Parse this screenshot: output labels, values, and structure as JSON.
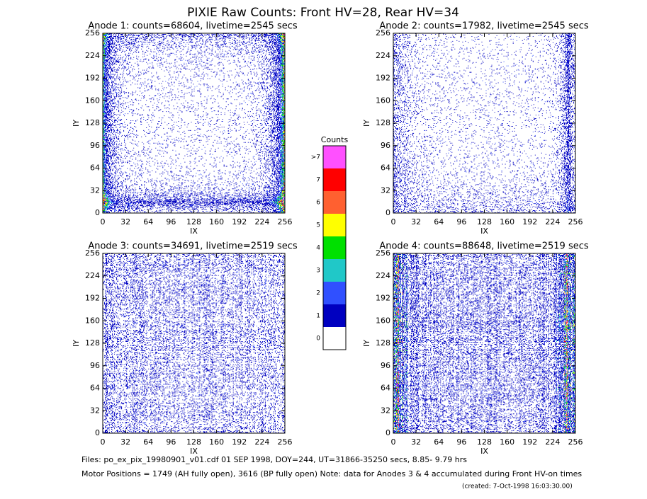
{
  "title": "PIXIE Raw Counts:  Front HV=28, Rear HV=34",
  "chart_data": [
    {
      "type": "heatmap",
      "title": "Anode 1: counts=68604, livetime=2545 secs",
      "xlabel": "IX",
      "ylabel": "IY",
      "xlim": [
        0,
        256
      ],
      "ylim": [
        0,
        256
      ],
      "xticks": [
        0,
        32,
        64,
        96,
        128,
        160,
        192,
        224,
        256
      ],
      "yticks": [
        0,
        32,
        64,
        96,
        128,
        160,
        192,
        224,
        256
      ]
    },
    {
      "type": "heatmap",
      "title": "Anode 2: counts=17982, livetime=2545 secs",
      "xlabel": "IX",
      "ylabel": "IY",
      "xlim": [
        0,
        256
      ],
      "ylim": [
        0,
        256
      ],
      "xticks": [
        0,
        32,
        64,
        96,
        128,
        160,
        192,
        224,
        256
      ],
      "yticks": [
        0,
        32,
        64,
        96,
        128,
        160,
        192,
        224,
        256
      ]
    },
    {
      "type": "heatmap",
      "title": "Anode 3: counts=34691, livetime=2519 secs",
      "xlabel": "IX",
      "ylabel": "IY",
      "xlim": [
        0,
        256
      ],
      "ylim": [
        0,
        256
      ],
      "xticks": [
        0,
        32,
        64,
        96,
        128,
        160,
        192,
        224,
        256
      ],
      "yticks": [
        0,
        32,
        64,
        96,
        128,
        160,
        192,
        224,
        256
      ]
    },
    {
      "type": "heatmap",
      "title": "Anode 4: counts=88648, livetime=2519 secs",
      "xlabel": "IX",
      "ylabel": "IY",
      "xlim": [
        0,
        256
      ],
      "ylim": [
        0,
        256
      ],
      "xticks": [
        0,
        32,
        64,
        96,
        128,
        160,
        192,
        224,
        256
      ],
      "yticks": [
        0,
        32,
        64,
        96,
        128,
        160,
        192,
        224,
        256
      ]
    }
  ],
  "colorbar": {
    "title": "Counts",
    "levels": [
      {
        "label": ">7",
        "color": "#ff50ff"
      },
      {
        "label": 7,
        "color": "#ff0000"
      },
      {
        "label": 6,
        "color": "#ff6030"
      },
      {
        "label": 5,
        "color": "#ffff00"
      },
      {
        "label": 4,
        "color": "#00e000"
      },
      {
        "label": 3,
        "color": "#20c8c8"
      },
      {
        "label": 2,
        "color": "#3050ff"
      },
      {
        "label": 1,
        "color": "#0000c0"
      },
      {
        "label": 0,
        "color": "#ffffff"
      }
    ]
  },
  "footer": {
    "files": "Files: po_ex_pix_19980901_v01.cdf    01 SEP 1998, DOY=244, UT=31866-35250 secs,  8.85- 9.79 hrs",
    "motor": "Motor Positions = 1749 (AH fully open), 3616 (BP fully open)    Note: data for Anodes 3 & 4 accumulated during Front HV-on times",
    "created": "(created:  7-Oct-1998 16:03:30.00)"
  }
}
